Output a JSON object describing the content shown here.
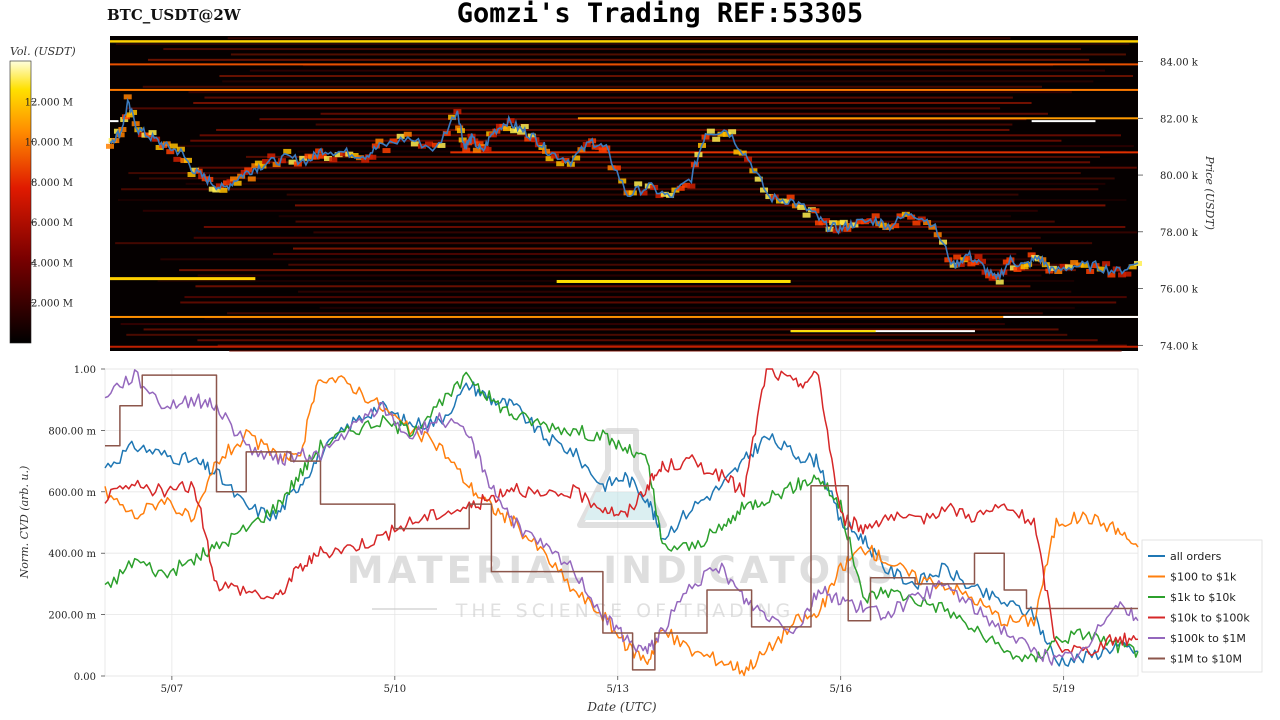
{
  "header": {
    "pair": "BTC_USDT@2W",
    "title": "Gomzi's Trading REF:53305"
  },
  "colorbar": {
    "label": "Vol. (USDT)",
    "ticks": [
      "12.000 M",
      "10.000 M",
      "8.000 M",
      "6.000 M",
      "4.000 M",
      "2.000 M"
    ],
    "tick_values": [
      12,
      10,
      8,
      6,
      4,
      2
    ],
    "range": [
      0,
      14
    ]
  },
  "watermark": {
    "line1": "MATERIAL INDICATORS",
    "line2": "THE SCIENCE OF TRADING"
  },
  "colors": {
    "all_orders": "#1f77b4",
    "s100_1k": "#ff7f0e",
    "s1k_10k": "#2ca02c",
    "s10k_100k": "#d62728",
    "s100k_1m": "#9467bd",
    "s1m_10m": "#8c564b",
    "heatmap_bg": "#050000",
    "price_line": "#3b7bbf"
  },
  "chart_data": [
    {
      "type": "heatmap",
      "ylabel": "Price (USDT)",
      "yticks": [
        "74.00 k",
        "76.00 k",
        "78.00 k",
        "80.00 k",
        "82.00 k",
        "84.00 k"
      ],
      "ytick_values": [
        74,
        76,
        78,
        80,
        82,
        84
      ],
      "ylim": [
        73.8,
        84.9
      ],
      "xlim": [
        0,
        14.5
      ],
      "price": {
        "name": "BTC_USDT",
        "x": [
          0,
          0.15,
          0.25,
          0.4,
          0.6,
          0.8,
          1.0,
          1.2,
          1.4,
          1.6,
          1.8,
          2.0,
          2.2,
          2.5,
          2.8,
          3.0,
          3.3,
          3.6,
          3.8,
          4.2,
          4.6,
          4.9,
          5.0,
          5.1,
          5.25,
          5.4,
          5.6,
          5.8,
          6.0,
          6.2,
          6.5,
          6.8,
          7.0,
          7.3,
          7.6,
          7.9,
          8.2,
          8.4,
          8.7,
          9.0,
          9.3,
          9.6,
          9.9,
          10.1,
          10.3,
          10.5,
          10.8,
          11.0,
          11.3,
          11.6,
          11.9,
          12.1,
          12.3,
          12.5,
          12.7,
          12.9,
          13.1,
          13.3,
          13.6,
          13.9,
          14.2,
          14.5
        ],
        "y": [
          81.2,
          81.5,
          82.5,
          81.6,
          81.3,
          81.0,
          80.8,
          80.1,
          79.8,
          79.5,
          79.9,
          80.2,
          80.4,
          80.6,
          80.5,
          80.9,
          80.8,
          80.7,
          81.0,
          81.3,
          80.9,
          82.3,
          81.0,
          81.3,
          80.8,
          81.5,
          81.9,
          81.6,
          81.3,
          80.8,
          80.5,
          81.2,
          80.9,
          79.3,
          79.6,
          79.2,
          79.9,
          81.5,
          81.6,
          80.6,
          79.2,
          79.1,
          78.7,
          78.2,
          78.1,
          78.3,
          78.4,
          78.2,
          78.7,
          78.3,
          76.8,
          77.2,
          76.8,
          76.3,
          77.0,
          76.8,
          77.1,
          76.6,
          76.8,
          76.8,
          76.6,
          76.9
        ]
      }
    },
    {
      "type": "line",
      "xlabel": "Date (UTC)",
      "ylabel": "Norm. CVD (arb. u.)",
      "xticks": [
        "5/07",
        "5/10",
        "5/13",
        "5/16",
        "5/19"
      ],
      "xtick_values": [
        1,
        4,
        7,
        10,
        13
      ],
      "xlim": [
        0.1,
        14.0
      ],
      "yticks": [
        "0.00",
        "200.00 m",
        "400.00 m",
        "600.00 m",
        "800.00 m",
        "1.00"
      ],
      "ytick_values": [
        0,
        0.2,
        0.4,
        0.6,
        0.8,
        1.0
      ],
      "ylim": [
        0,
        1.0
      ],
      "grid": true,
      "legend": "right",
      "series": [
        {
          "name": "all orders",
          "color_key": "all_orders",
          "x": [
            0.1,
            0.5,
            0.9,
            1.3,
            1.6,
            2.0,
            2.4,
            2.7,
            3.0,
            3.4,
            3.8,
            4.2,
            4.6,
            5.0,
            5.3,
            5.6,
            6.0,
            6.4,
            6.8,
            7.1,
            7.4,
            7.6,
            8.0,
            8.4,
            8.7,
            9.0,
            9.4,
            9.7,
            10.0,
            10.3,
            10.6,
            11.0,
            11.4,
            11.8,
            12.2,
            12.6,
            12.9,
            13.3,
            13.7,
            14.0
          ],
          "y": [
            0.68,
            0.75,
            0.72,
            0.7,
            0.66,
            0.55,
            0.52,
            0.62,
            0.72,
            0.82,
            0.88,
            0.82,
            0.83,
            0.95,
            0.9,
            0.88,
            0.78,
            0.73,
            0.62,
            0.65,
            0.58,
            0.45,
            0.55,
            0.62,
            0.7,
            0.78,
            0.72,
            0.7,
            0.5,
            0.45,
            0.35,
            0.3,
            0.35,
            0.28,
            0.24,
            0.2,
            0.05,
            0.06,
            0.1,
            0.08
          ]
        },
        {
          "name": "$100 to $1k",
          "color_key": "s100_1k",
          "x": [
            0.1,
            0.5,
            0.9,
            1.3,
            1.6,
            2.0,
            2.4,
            2.7,
            3.0,
            3.4,
            3.8,
            4.2,
            4.6,
            5.0,
            5.3,
            5.6,
            6.0,
            6.4,
            6.8,
            7.1,
            7.4,
            7.6,
            8.0,
            8.4,
            8.7,
            9.0,
            9.4,
            9.7,
            10.0,
            10.3,
            10.6,
            11.0,
            11.4,
            11.8,
            12.2,
            12.6,
            12.9,
            13.3,
            13.7,
            14.0
          ],
          "y": [
            0.6,
            0.52,
            0.58,
            0.5,
            0.7,
            0.78,
            0.72,
            0.7,
            0.98,
            0.95,
            0.88,
            0.8,
            0.75,
            0.62,
            0.55,
            0.5,
            0.4,
            0.28,
            0.2,
            0.1,
            0.05,
            0.15,
            0.08,
            0.05,
            0.02,
            0.08,
            0.18,
            0.2,
            0.35,
            0.42,
            0.38,
            0.32,
            0.3,
            0.25,
            0.18,
            0.18,
            0.5,
            0.52,
            0.48,
            0.42
          ]
        },
        {
          "name": "$1k to $10k",
          "color_key": "s1k_10k",
          "x": [
            0.1,
            0.5,
            0.9,
            1.3,
            1.6,
            2.0,
            2.4,
            2.7,
            3.0,
            3.4,
            3.8,
            4.2,
            4.6,
            5.0,
            5.3,
            5.6,
            6.0,
            6.4,
            6.8,
            7.1,
            7.4,
            7.6,
            8.0,
            8.4,
            8.7,
            9.0,
            9.4,
            9.7,
            10.0,
            10.3,
            10.6,
            11.0,
            11.4,
            11.8,
            12.2,
            12.6,
            12.9,
            13.3,
            13.7,
            14.0
          ],
          "y": [
            0.28,
            0.38,
            0.33,
            0.38,
            0.42,
            0.48,
            0.55,
            0.65,
            0.75,
            0.8,
            0.83,
            0.8,
            0.88,
            0.98,
            0.9,
            0.85,
            0.82,
            0.8,
            0.78,
            0.74,
            0.7,
            0.42,
            0.42,
            0.48,
            0.55,
            0.58,
            0.62,
            0.65,
            0.55,
            0.25,
            0.28,
            0.25,
            0.22,
            0.15,
            0.08,
            0.05,
            0.12,
            0.14,
            0.1,
            0.08
          ]
        },
        {
          "name": "$10k to $100k",
          "color_key": "s10k_100k",
          "x": [
            0.1,
            0.5,
            0.9,
            1.3,
            1.6,
            2.0,
            2.4,
            2.7,
            3.0,
            3.4,
            3.8,
            4.2,
            4.6,
            5.0,
            5.3,
            5.6,
            6.0,
            6.4,
            6.8,
            7.1,
            7.4,
            7.6,
            8.0,
            8.4,
            8.7,
            9.0,
            9.4,
            9.7,
            10.0,
            10.3,
            10.6,
            11.0,
            11.4,
            11.8,
            12.2,
            12.6,
            12.9,
            13.3,
            13.7,
            14.0
          ],
          "y": [
            0.58,
            0.62,
            0.6,
            0.62,
            0.3,
            0.28,
            0.25,
            0.35,
            0.4,
            0.42,
            0.45,
            0.5,
            0.53,
            0.55,
            0.58,
            0.62,
            0.58,
            0.6,
            0.55,
            0.52,
            0.62,
            0.68,
            0.7,
            0.65,
            0.6,
            1.0,
            0.95,
            0.98,
            0.52,
            0.48,
            0.52,
            0.5,
            0.55,
            0.52,
            0.55,
            0.5,
            0.1,
            0.08,
            0.12,
            0.12
          ]
        },
        {
          "name": "$100k to $1M",
          "color_key": "s100k_1m",
          "x": [
            0.1,
            0.5,
            0.9,
            1.3,
            1.6,
            2.0,
            2.4,
            2.7,
            3.0,
            3.4,
            3.8,
            4.2,
            4.6,
            5.0,
            5.3,
            5.6,
            6.0,
            6.4,
            6.8,
            7.1,
            7.4,
            7.6,
            8.0,
            8.4,
            8.7,
            9.0,
            9.4,
            9.7,
            10.0,
            10.3,
            10.6,
            11.0,
            11.4,
            11.8,
            12.2,
            12.6,
            12.9,
            13.3,
            13.7,
            14.0
          ],
          "y": [
            0.92,
            0.98,
            0.88,
            0.9,
            0.88,
            0.75,
            0.7,
            0.72,
            0.72,
            0.8,
            0.88,
            0.78,
            0.84,
            0.78,
            0.62,
            0.5,
            0.42,
            0.35,
            0.2,
            0.12,
            0.08,
            0.15,
            0.3,
            0.35,
            0.25,
            0.2,
            0.15,
            0.28,
            0.25,
            0.22,
            0.2,
            0.25,
            0.3,
            0.22,
            0.15,
            0.08,
            0.05,
            0.08,
            0.25,
            0.18
          ]
        },
        {
          "name": "$1M to $10M",
          "color_key": "s1m_10m",
          "x": [
            0.1,
            0.3,
            0.3,
            0.6,
            0.6,
            1.0,
            1.1,
            1.1,
            1.6,
            1.6,
            2.0,
            2.0,
            2.6,
            2.6,
            3.0,
            3.0,
            3.3,
            3.3,
            4.0,
            4.0,
            5.0,
            5.0,
            5.3,
            5.3,
            6.8,
            6.8,
            7.2,
            7.2,
            7.5,
            7.5,
            8.2,
            8.2,
            8.8,
            8.8,
            9.6,
            9.6,
            10.1,
            10.1,
            10.4,
            10.4,
            11.0,
            11.0,
            11.8,
            11.8,
            12.2,
            12.2,
            12.5,
            12.5,
            12.9,
            12.9,
            14.0
          ],
          "y": [
            0.75,
            0.75,
            0.88,
            0.88,
            0.98,
            0.98,
            0.98,
            0.98,
            0.98,
            0.6,
            0.6,
            0.73,
            0.73,
            0.7,
            0.7,
            0.56,
            0.56,
            0.56,
            0.56,
            0.48,
            0.48,
            0.56,
            0.56,
            0.34,
            0.34,
            0.14,
            0.14,
            0.02,
            0.02,
            0.14,
            0.14,
            0.28,
            0.28,
            0.16,
            0.16,
            0.62,
            0.62,
            0.18,
            0.18,
            0.32,
            0.32,
            0.3,
            0.3,
            0.4,
            0.4,
            0.28,
            0.28,
            0.22,
            0.22,
            0.22,
            0.22
          ]
        }
      ]
    }
  ]
}
